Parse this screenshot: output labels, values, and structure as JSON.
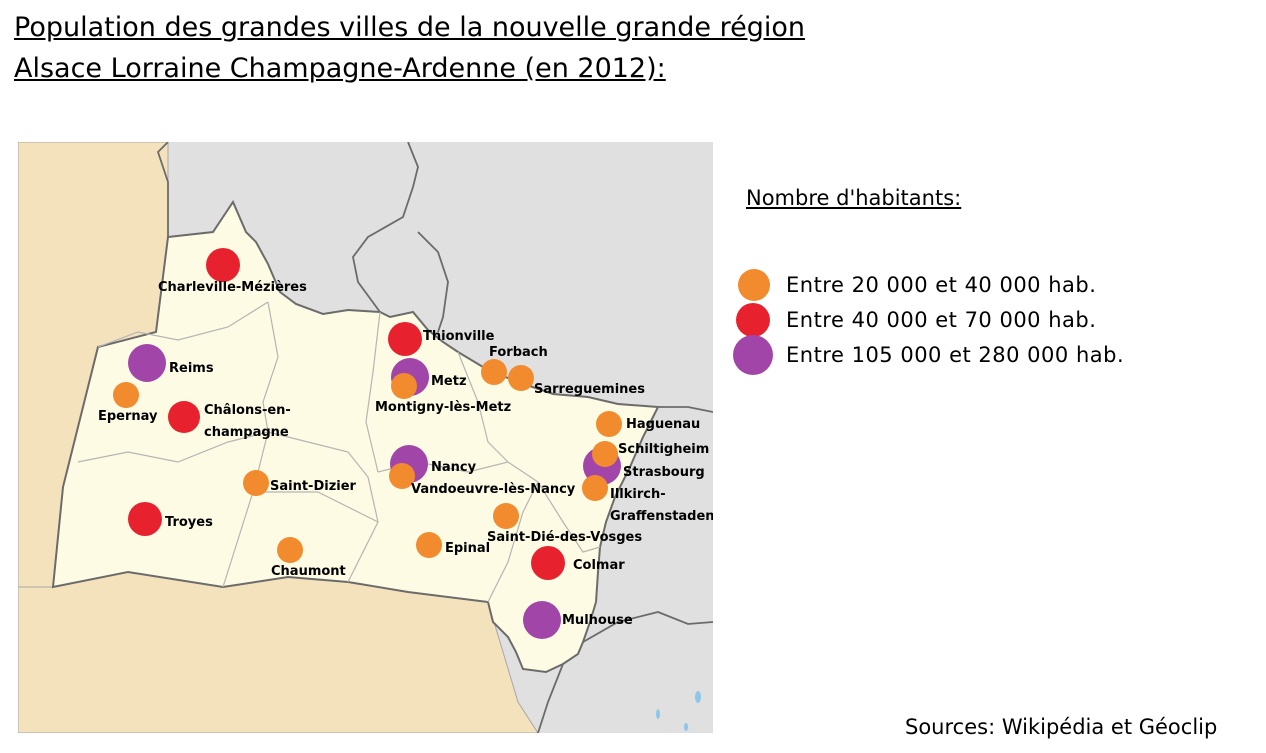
{
  "title": {
    "line1": "Population des grandes villes de la nouvelle grande région",
    "line2": "Alsace Lorraine Champagne-Ardenne (en 2012):"
  },
  "legend": {
    "title": "Nombre d'habitants:",
    "items": [
      {
        "label": "Entre 20 000 et 40 000 hab.",
        "color": "#f28a2e"
      },
      {
        "label": "Entre 40 000 et 70 000 hab.",
        "color": "#e8212f"
      },
      {
        "label": "Entre 105 000 et 280 000 hab.",
        "color": "#a146a8"
      }
    ]
  },
  "colors": {
    "region": "#fdfbe3",
    "neighbor_france": "#f4e2bd",
    "foreign": "#e0e0e0",
    "border": "#a7a7a7",
    "country_border": "#6b6b6b",
    "water": "#8ec7ea"
  },
  "cities": [
    {
      "name": "Charleville-Mézières",
      "class": "Entre 40 000 et 70 000 hab."
    },
    {
      "name": "Reims",
      "class": "Entre 105 000 et 280 000 hab."
    },
    {
      "name": "Epernay",
      "class": "Entre 20 000 et 40 000 hab."
    },
    {
      "name": "Châlons-en-",
      "class": "Entre 40 000 et 70 000 hab."
    },
    {
      "name": "champagne",
      "class": ""
    },
    {
      "name": "Troyes",
      "class": "Entre 40 000 et 70 000 hab."
    },
    {
      "name": "Saint-Dizier",
      "class": "Entre 20 000 et 40 000 hab."
    },
    {
      "name": "Chaumont",
      "class": "Entre 20 000 et 40 000 hab."
    },
    {
      "name": "Thionville",
      "class": "Entre 40 000 et 70 000 hab."
    },
    {
      "name": "Metz",
      "class": "Entre 105 000 et 280 000 hab."
    },
    {
      "name": "Montigny-lès-Metz",
      "class": "Entre 20 000 et 40 000 hab."
    },
    {
      "name": "Forbach",
      "class": "Entre 20 000 et 40 000 hab."
    },
    {
      "name": "Sarreguemines",
      "class": "Entre 20 000 et 40 000 hab."
    },
    {
      "name": "Nancy",
      "class": "Entre 105 000 et 280 000 hab."
    },
    {
      "name": "Vandoeuvre-lès-Nancy",
      "class": "Entre 20 000 et 40 000 hab."
    },
    {
      "name": "Epinal",
      "class": "Entre 20 000 et 40 000 hab."
    },
    {
      "name": "Saint-Dié-des-Vosges",
      "class": "Entre 20 000 et 40 000 hab."
    },
    {
      "name": "Haguenau",
      "class": "Entre 20 000 et 40 000 hab."
    },
    {
      "name": "Schiltigheim",
      "class": "Entre 20 000 et 40 000 hab."
    },
    {
      "name": "Strasbourg",
      "class": "Entre 105 000 et 280 000 hab."
    },
    {
      "name": "Illkirch-",
      "class": "Entre 20 000 et 40 000 hab."
    },
    {
      "name": "Graffenstaden",
      "class": ""
    },
    {
      "name": "Colmar",
      "class": "Entre 40 000 et 70 000 hab."
    },
    {
      "name": "Mulhouse",
      "class": "Entre 105 000 et 280 000 hab."
    }
  ],
  "sources": "Sources: Wikipédia et Géoclip"
}
